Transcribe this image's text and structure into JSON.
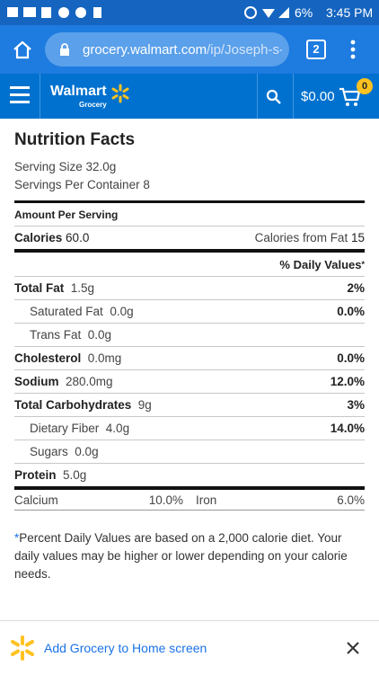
{
  "status_bar": {
    "battery": "6%",
    "time": "3:45 PM"
  },
  "browser": {
    "url_host": "grocery.walmart.com",
    "url_path": "/ip/Joseph-s-I",
    "tab_count": "2"
  },
  "header": {
    "brand": "Walmart",
    "sub_brand": "Grocery",
    "cart_total": "$0.00",
    "cart_count": "0"
  },
  "nutrition": {
    "title": "Nutrition Facts",
    "serving_size": "Serving Size 32.0g",
    "servings_per_container": "Servings Per Container 8",
    "amount_per_serving": "Amount Per Serving",
    "calories": {
      "label": "Calories",
      "value": "60.0"
    },
    "calories_from_fat": {
      "label": "Calories from Fat",
      "value": "15"
    },
    "daily_values_header": "% Daily Values",
    "daily_values_marker": "*",
    "rows": [
      {
        "name": "Total Fat",
        "amount": "1.5g",
        "dv": "2%",
        "bold": true,
        "indent": false
      },
      {
        "name": "Saturated Fat",
        "amount": "0.0g",
        "dv": "0.0%",
        "bold": false,
        "indent": true
      },
      {
        "name": "Trans Fat",
        "amount": "0.0g",
        "bold": false,
        "indent": true
      },
      {
        "name": "Cholesterol",
        "amount": "0.0mg",
        "dv": "0.0%",
        "bold": true,
        "indent": false
      },
      {
        "name": "Sodium",
        "amount": "280.0mg",
        "dv": "12.0%",
        "bold": true,
        "indent": false
      },
      {
        "name": "Total Carbohydrates",
        "amount": "9g",
        "dv": "3%",
        "bold": true,
        "indent": false
      },
      {
        "name": "Dietary Fiber",
        "amount": "4.0g",
        "dv": "14.0%",
        "bold": false,
        "indent": true
      },
      {
        "name": "Sugars",
        "amount": "0.0g",
        "bold": false,
        "indent": true
      },
      {
        "name": "Protein",
        "amount": "5.0g",
        "bold": true,
        "indent": false
      }
    ],
    "minerals": [
      {
        "name": "Calcium",
        "dv": "10.0%"
      },
      {
        "name": "Iron",
        "dv": "6.0%"
      }
    ],
    "footnote": {
      "marker": "*",
      "text": "Percent Daily Values are based on a 2,000 calorie diet. Your daily values may be higher or lower depending on your calorie needs."
    }
  },
  "banner": {
    "text": "Add Grocery to Home screen"
  }
}
